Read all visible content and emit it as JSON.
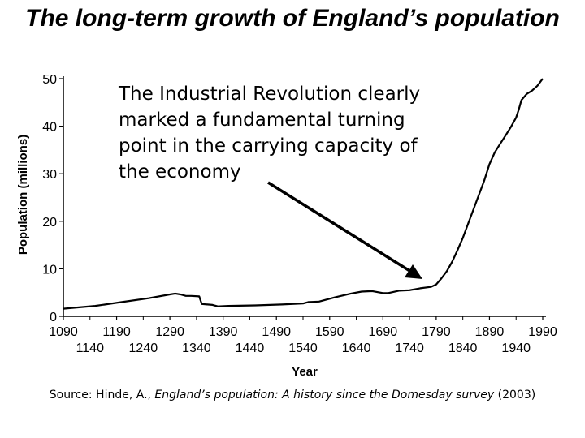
{
  "title": "The long-term growth of England’s population",
  "annotation": {
    "lines": [
      "The Industrial Revolution clearly",
      "marked a fundamental turning",
      "point in the carrying capacity of",
      "the economy"
    ]
  },
  "source": {
    "prefix": "Source:  Hinde, A., ",
    "work": "England’s population: A history since the Domesday survey",
    "suffix": " (2003)"
  },
  "chart_data": {
    "type": "line",
    "title": "",
    "xlabel": "Year",
    "ylabel": "Population (millions)",
    "xlim": [
      1090,
      1990
    ],
    "ylim": [
      0,
      50
    ],
    "xticks_top": [
      "1090",
      "1190",
      "1290",
      "1390",
      "1490",
      "1590",
      "1690",
      "1790",
      "1890",
      "1990"
    ],
    "xticks_bottom": [
      "1140",
      "1240",
      "1340",
      "1440",
      "1540",
      "1640",
      "1740",
      "1840",
      "1940"
    ],
    "yticks": [
      0,
      10,
      20,
      30,
      40,
      50
    ],
    "grid": false,
    "series": [
      {
        "color": "#000000",
        "x": [
          1090,
          1100,
          1150,
          1200,
          1250,
          1290,
          1300,
          1310,
          1320,
          1330,
          1345,
          1350,
          1370,
          1380,
          1400,
          1450,
          1500,
          1540,
          1550,
          1570,
          1600,
          1630,
          1650,
          1670,
          1690,
          1700,
          1720,
          1740,
          1760,
          1780,
          1790,
          1800,
          1810,
          1820,
          1830,
          1840,
          1850,
          1860,
          1870,
          1880,
          1890,
          1900,
          1910,
          1920,
          1930,
          1940,
          1945,
          1950,
          1960,
          1970,
          1980,
          1990
        ],
        "y": [
          1.6,
          1.7,
          2.2,
          3.0,
          3.8,
          4.6,
          4.8,
          4.6,
          4.3,
          4.3,
          4.2,
          2.6,
          2.4,
          2.1,
          2.2,
          2.3,
          2.5,
          2.7,
          3.0,
          3.1,
          4.0,
          4.8,
          5.2,
          5.3,
          4.9,
          4.9,
          5.4,
          5.5,
          5.9,
          6.2,
          6.7,
          8.0,
          9.5,
          11.5,
          13.9,
          16.5,
          19.5,
          22.5,
          25.5,
          28.5,
          32.0,
          34.5,
          36.3,
          38.0,
          39.8,
          41.8,
          43.5,
          45.5,
          46.8,
          47.5,
          48.5,
          50.0
        ]
      }
    ]
  }
}
